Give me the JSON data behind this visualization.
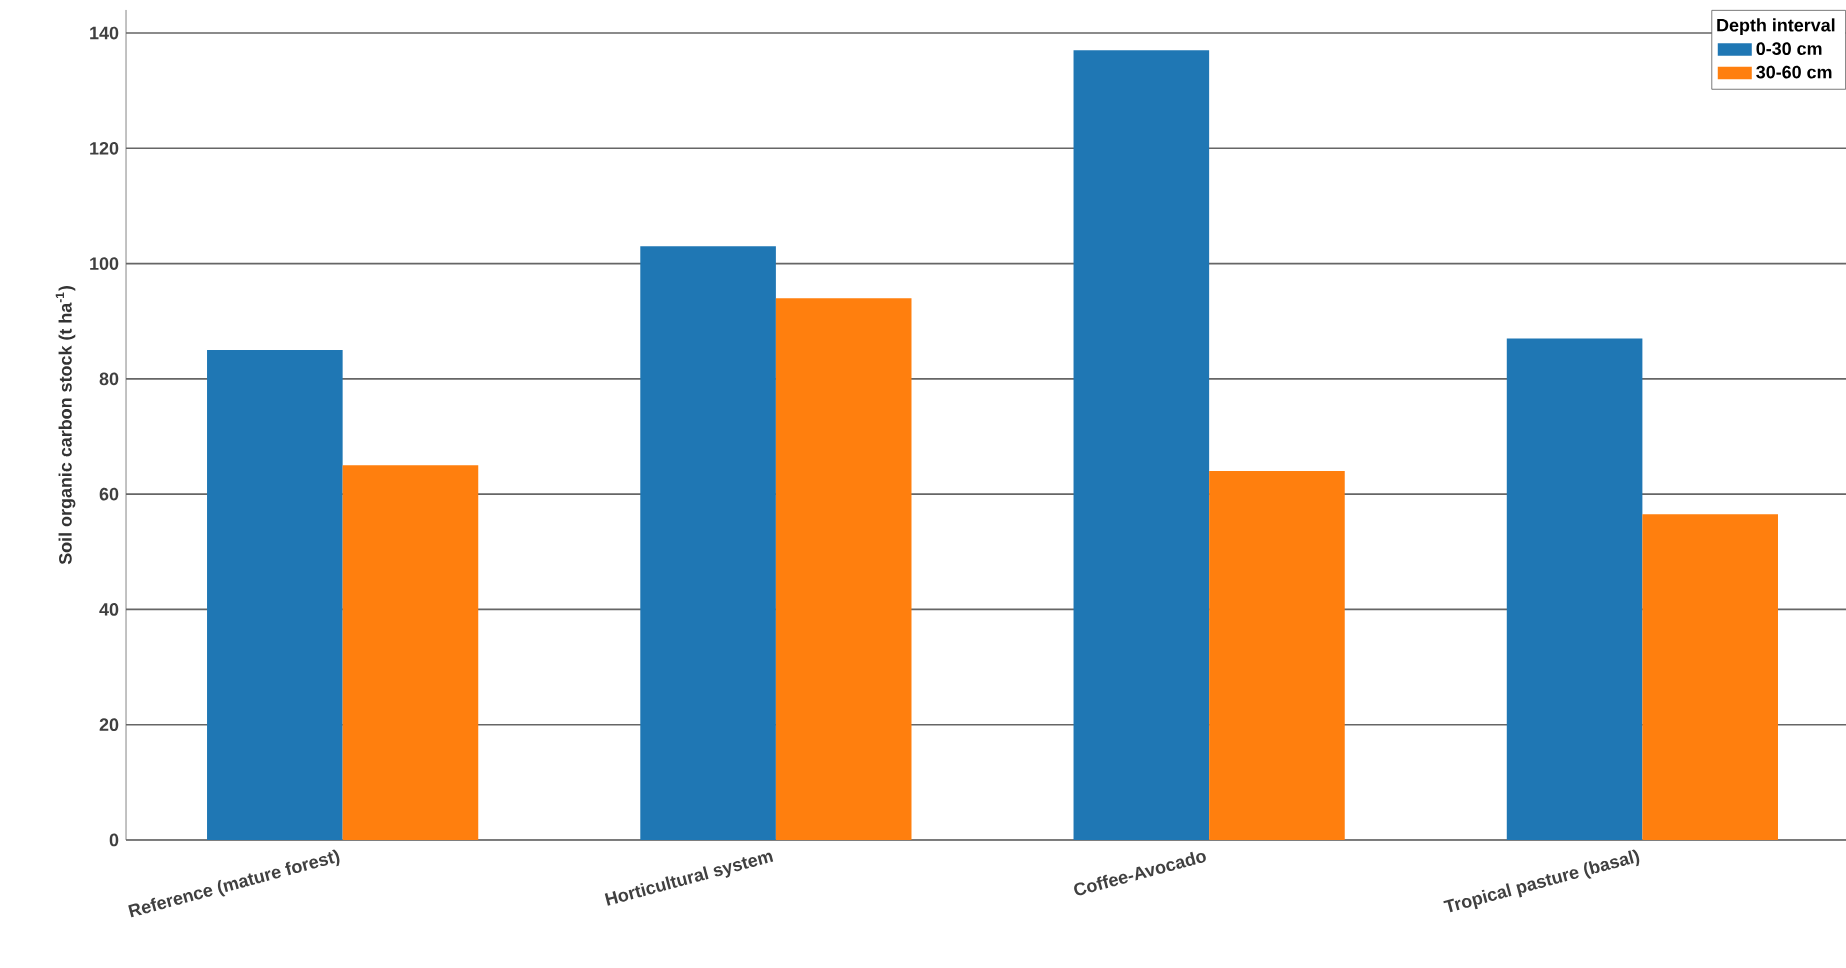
{
  "chart_data": {
    "type": "bar",
    "ylabel": "Soil organic carbon stock (t ha$^{-1}$)",
    "legend_title": "Depth interval",
    "categories": [
      "Reference (mature forest)",
      "Horticultural system",
      "Coffee-Avocado",
      "Tropical pasture (basal)"
    ],
    "series": [
      {
        "name": "0-30 cm",
        "color": "#1f77b4",
        "values": [
          85,
          103,
          137,
          87
        ]
      },
      {
        "name": "30-60 cm",
        "color": "#ff7f0e",
        "values": [
          65,
          94,
          64,
          56.5
        ]
      }
    ],
    "ylim": [
      0,
      144
    ],
    "yticks": [
      0,
      20,
      40,
      60,
      80,
      100,
      120,
      140
    ],
    "grid": "y",
    "legend": "top right"
  }
}
